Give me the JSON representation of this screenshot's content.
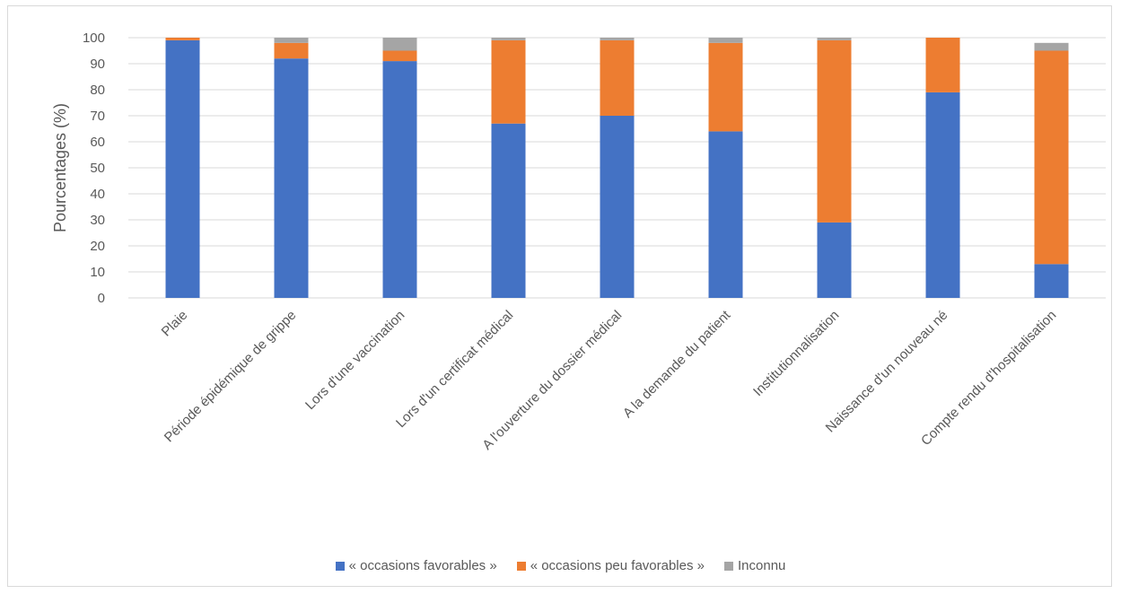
{
  "chart_data": {
    "type": "bar",
    "stacked": true,
    "ylabel": "Pourcentages (%)",
    "ylim": [
      0,
      100
    ],
    "yticks": [
      0,
      10,
      20,
      30,
      40,
      50,
      60,
      70,
      80,
      90,
      100
    ],
    "grid": true,
    "legend_position": "bottom",
    "categories": [
      "Plaie",
      "Période épidémique de grippe",
      "Lors d'une vaccination",
      "Lors d'un certificat médical",
      "A l'ouverture du dossier médical",
      "A la demande du patient",
      "Institutionnalisation",
      "Naissance d'un nouveau né",
      "Compte rendu d'hospitalisation"
    ],
    "series": [
      {
        "name": "« occasions favorables »",
        "color": "#4472c4",
        "values": [
          99,
          92,
          91,
          67,
          70,
          64,
          29,
          79,
          13
        ]
      },
      {
        "name": "« occasions peu favorables »",
        "color": "#ed7d31",
        "values": [
          1,
          6,
          4,
          32,
          29,
          34,
          70,
          21,
          82
        ]
      },
      {
        "name": "Inconnu",
        "color": "#a5a5a5",
        "values": [
          0,
          2,
          5,
          1,
          1,
          2,
          1,
          0,
          3
        ]
      }
    ]
  }
}
